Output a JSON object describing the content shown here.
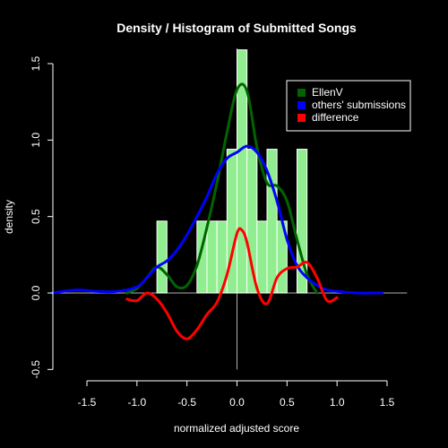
{
  "chart_data": {
    "type": "histogram+density",
    "title": "Density / Histogram of Submitted Songs",
    "xlabel": "normalized adjusted score",
    "ylabel": "density",
    "xlim": [
      -1.85,
      1.7
    ],
    "ylim": [
      -0.5,
      1.6
    ],
    "x_ticks": [
      -1.5,
      -1.0,
      -0.5,
      0.0,
      0.5,
      1.0,
      1.5
    ],
    "x_tick_labels": [
      "-1.5",
      "-1.0",
      "-0.5",
      "0.0",
      "0.5",
      "1.0",
      "1.5"
    ],
    "y_ticks": [
      -0.5,
      0.0,
      0.5,
      1.0,
      1.5
    ],
    "y_tick_labels": [
      "-0.5",
      "0.0",
      "0.5",
      "1.0",
      "1.5"
    ],
    "histogram": {
      "color": "#90ee90",
      "bin_width": 0.1,
      "bins": [
        {
          "x0": -0.8,
          "x1": -0.7,
          "density": 0.47
        },
        {
          "x0": -0.4,
          "x1": -0.3,
          "density": 0.47
        },
        {
          "x0": -0.3,
          "x1": -0.2,
          "density": 0.47
        },
        {
          "x0": -0.2,
          "x1": -0.1,
          "density": 0.47
        },
        {
          "x0": -0.1,
          "x1": 0.0,
          "density": 0.94
        },
        {
          "x0": 0.0,
          "x1": 0.1,
          "density": 1.59
        },
        {
          "x0": 0.1,
          "x1": 0.2,
          "density": 0.94
        },
        {
          "x0": 0.2,
          "x1": 0.3,
          "density": 0.47
        },
        {
          "x0": 0.3,
          "x1": 0.4,
          "density": 0.94
        },
        {
          "x0": 0.4,
          "x1": 0.5,
          "density": 0.47
        },
        {
          "x0": 0.5,
          "x1": 0.6,
          "density": 0.0
        },
        {
          "x0": 0.6,
          "x1": 0.7,
          "density": 0.94
        }
      ],
      "bar_highlight_extra": {
        "x0": 0.0,
        "x1": 0.1,
        "density": 1.36
      }
    },
    "series": [
      {
        "name": "EllenV",
        "color": "#006400",
        "x": [
          -1.1,
          -1.0,
          -0.9,
          -0.8,
          -0.7,
          -0.6,
          -0.5,
          -0.4,
          -0.3,
          -0.2,
          -0.1,
          0.0,
          0.1,
          0.2,
          0.3,
          0.4,
          0.5,
          0.6,
          0.7,
          0.8
        ],
        "y": [
          0.0,
          0.03,
          0.1,
          0.17,
          0.12,
          0.04,
          0.05,
          0.18,
          0.43,
          0.72,
          1.05,
          1.33,
          1.32,
          0.95,
          0.72,
          0.7,
          0.6,
          0.35,
          0.12,
          0.0
        ]
      },
      {
        "name": "others' submissions",
        "color": "#0000ff",
        "x": [
          -1.85,
          -1.6,
          -1.4,
          -1.2,
          -1.0,
          -0.9,
          -0.8,
          -0.7,
          -0.6,
          -0.5,
          -0.4,
          -0.3,
          -0.2,
          -0.1,
          0.0,
          0.1,
          0.2,
          0.3,
          0.4,
          0.5,
          0.6,
          0.7,
          0.8,
          0.9,
          1.0,
          1.2,
          1.45
        ],
        "y": [
          0.0,
          0.02,
          0.01,
          0.01,
          0.04,
          0.1,
          0.17,
          0.21,
          0.28,
          0.38,
          0.5,
          0.63,
          0.78,
          0.88,
          0.92,
          0.96,
          0.92,
          0.8,
          0.6,
          0.35,
          0.18,
          0.1,
          0.05,
          0.02,
          0.01,
          0.0,
          0.0
        ]
      },
      {
        "name": "difference",
        "color": "#ff0000",
        "x": [
          -1.1,
          -1.0,
          -0.9,
          -0.8,
          -0.7,
          -0.6,
          -0.5,
          -0.4,
          -0.3,
          -0.2,
          -0.1,
          0.0,
          0.05,
          0.1,
          0.2,
          0.3,
          0.4,
          0.5,
          0.6,
          0.7,
          0.8,
          0.9,
          1.0
        ],
        "y": [
          -0.04,
          -0.05,
          0.0,
          -0.04,
          -0.13,
          -0.25,
          -0.3,
          -0.24,
          -0.14,
          -0.06,
          0.12,
          0.39,
          0.41,
          0.33,
          0.03,
          -0.07,
          0.1,
          0.16,
          0.17,
          0.2,
          0.1,
          -0.05,
          -0.03
        ]
      }
    ],
    "legend": {
      "placement": "top-right",
      "items": [
        {
          "label": "EllenV",
          "color": "#006400"
        },
        {
          "label": "others' submissions",
          "color": "#0000ff"
        },
        {
          "label": "difference",
          "color": "#ff0000"
        }
      ]
    }
  }
}
